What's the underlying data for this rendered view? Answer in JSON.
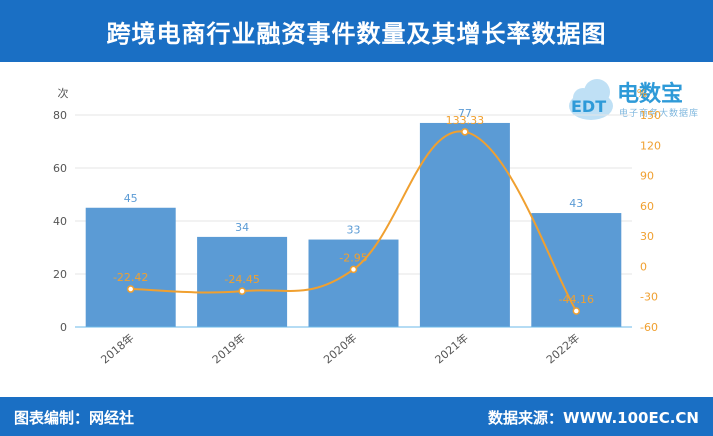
{
  "header": {
    "title": "跨境电商行业融资事件数量及其增长率数据图"
  },
  "logo": {
    "brand": "电数宝",
    "badge": "EDT",
    "sub": "电子商务大数据库"
  },
  "footer": {
    "left": "图表编制：网经社",
    "right": "数据来源：WWW.100EC.CN"
  },
  "colors": {
    "header": "#1a6fc4",
    "bar": "#5b9bd5",
    "line": "#f0a030"
  },
  "chart_data": {
    "type": "bar",
    "categories": [
      "2018年",
      "2019年",
      "2020年",
      "2021年",
      "2022年"
    ],
    "series": [
      {
        "type": "bar",
        "axis": "left",
        "values": [
          45,
          34,
          33,
          77,
          43
        ]
      },
      {
        "type": "line",
        "axis": "right",
        "values": [
          -22.42,
          -24.45,
          -2.95,
          133.33,
          -44.16
        ]
      }
    ],
    "left_axis": {
      "label": "次",
      "min": 0,
      "max": 80,
      "ticks": [
        0,
        20,
        40,
        60,
        80
      ]
    },
    "right_axis": {
      "label": "%",
      "min": -60,
      "max": 150,
      "ticks": [
        -60,
        -30,
        0,
        30,
        60,
        90,
        120,
        150
      ]
    },
    "grid": true,
    "smooth_line": true
  }
}
